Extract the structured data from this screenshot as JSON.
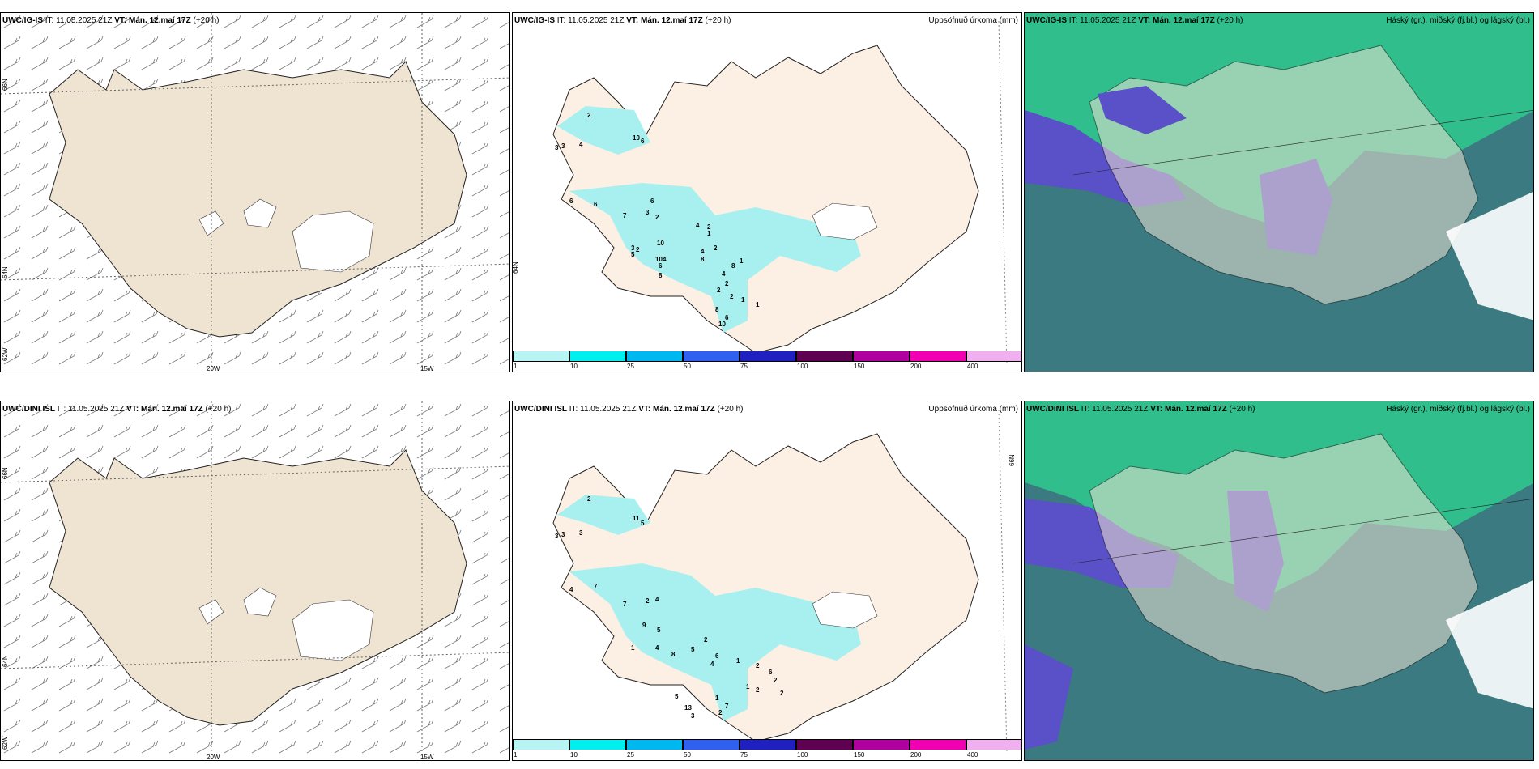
{
  "rows": [
    {
      "model": "UWC/IG-IS",
      "it_label": "IT:",
      "it_value": "11.05.2025 21Z",
      "vt_label": "VT:",
      "vt_value": "Mán. 12.maí 17Z",
      "lead": "(+20 h)",
      "wind_axis": {
        "bottom": [
          "20W",
          "15W"
        ],
        "left": [
          "66N",
          "64N",
          "62W"
        ]
      },
      "precip_title": "Uppsöfnuð úrkoma (mm)",
      "precip_right_tick": "64N",
      "precip_labels": [
        "2",
        "10",
        "6",
        "3",
        "4",
        "3",
        "6",
        "6",
        "7",
        "3",
        "6",
        "2",
        "3",
        "10",
        "2",
        "5",
        "4",
        "10",
        "6",
        "8",
        "4",
        "2",
        "1",
        "2",
        "4",
        "8",
        "1",
        "8",
        "4",
        "2",
        "2",
        "2",
        "1",
        "1",
        "8",
        "6",
        "10"
      ],
      "cloud_title": "Háský (gr.), miðský (fj.bl.) og lágský (bl.)"
    },
    {
      "model": "UWC/DINI ISL",
      "it_label": "IT:",
      "it_value": "11.05.2025 21Z",
      "vt_label": "VT:",
      "vt_value": "Mán. 12.maí 17Z",
      "lead": "(+20 h)",
      "wind_axis": {
        "bottom": [
          "20W",
          "15W"
        ],
        "left": [
          "66N",
          "64N",
          "62W"
        ]
      },
      "precip_title": "Uppsöfnuð úrkoma (mm)",
      "precip_right_tick": "66N",
      "precip_labels": [
        "2",
        "11",
        "5",
        "3",
        "3",
        "3",
        "4",
        "7",
        "7",
        "2",
        "4",
        "9",
        "5",
        "1",
        "4",
        "8",
        "5",
        "2",
        "6",
        "4",
        "1",
        "2",
        "6",
        "2",
        "1",
        "2",
        "2",
        "1",
        "7",
        "2",
        "5",
        "13",
        "3"
      ],
      "cloud_title": "Háský (gr.), miðský (fj.bl.) og lágský (bl.)"
    }
  ],
  "colorbar": {
    "labels": [
      "1",
      "10",
      "25",
      "50",
      "75",
      "100",
      "150",
      "200",
      "400"
    ],
    "colors": [
      "#b8f4f4",
      "#00eeee",
      "#00b8f0",
      "#3060f0",
      "#2020c0",
      "#600050",
      "#b000a0",
      "#f000b0",
      "#f0b0f0"
    ]
  },
  "colors": {
    "land": "#efe3d2",
    "land_light": "#fcefe3",
    "precip": "#a8f0f0",
    "cloud_high": "#3a7a80",
    "cloud_mid": "#5a50c8",
    "cloud_low": "#30d090"
  }
}
